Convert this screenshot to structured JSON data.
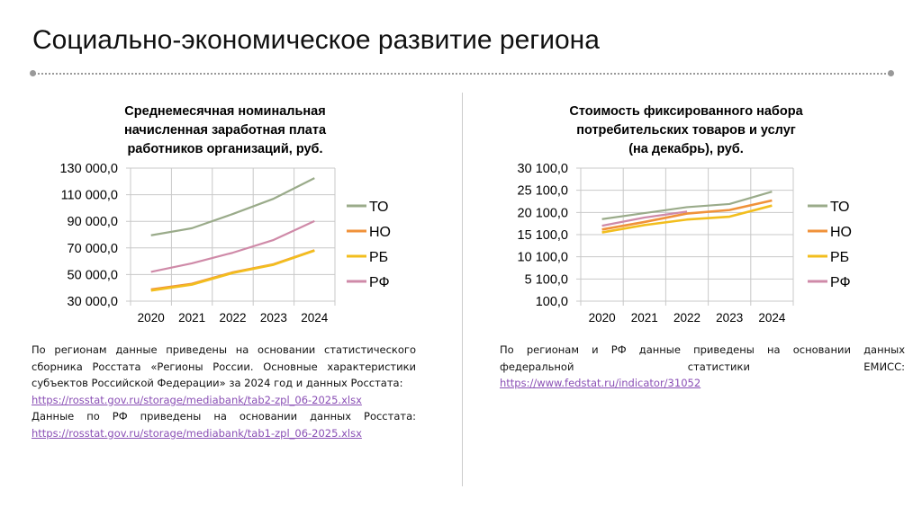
{
  "slide": {
    "title": "Социально-экономическое развитие региона"
  },
  "chart_data": [
    {
      "type": "line",
      "title_lines": [
        "Среднемесячная номинальная",
        "начисленная заработная плата",
        "работников организаций, руб."
      ],
      "categories": [
        "2020",
        "2021",
        "2022",
        "2023",
        "2024"
      ],
      "ylim": [
        30000,
        130000
      ],
      "yticks": [
        "30 000,0",
        "50 000,0",
        "70 000,0",
        "90 000,0",
        "110 000,0",
        "130 000,0"
      ],
      "ytick_values": [
        30000,
        50000,
        70000,
        90000,
        110000,
        130000
      ],
      "grid": true,
      "legend_placement": "right",
      "series": [
        {
          "name": "ТО",
          "color": "#9aab8a",
          "values": [
            79500,
            84800,
            95500,
            107000,
            122500
          ]
        },
        {
          "name": "НО",
          "color": "#f0923a",
          "values": [
            38800,
            43000,
            51600,
            57700,
            68200
          ]
        },
        {
          "name": "РБ",
          "color": "#f2be1e",
          "values": [
            38000,
            42400,
            51200,
            57400,
            68000
          ]
        },
        {
          "name": "РФ",
          "color": "#cf8aa8",
          "values": [
            52000,
            58400,
            66400,
            76000,
            90200
          ]
        }
      ]
    },
    {
      "type": "line",
      "title_lines": [
        "Стоимость фиксированного набора",
        "потребительских товаров и услуг",
        "(на декабрь), руб."
      ],
      "categories": [
        "2020",
        "2021",
        "2022",
        "2023",
        "2024"
      ],
      "ylim": [
        100,
        30100
      ],
      "yticks": [
        "100,0",
        "5 100,0",
        "10 100,0",
        "15 100,0",
        "20 100,0",
        "25 100,0",
        "30 100,0"
      ],
      "ytick_values": [
        100,
        5100,
        10100,
        15100,
        20100,
        25100,
        30100
      ],
      "grid": true,
      "legend_placement": "right",
      "series": [
        {
          "name": "ТО",
          "color": "#9aab8a",
          "values": [
            18600,
            19950,
            21300,
            22000,
            24800
          ]
        },
        {
          "name": "НО",
          "color": "#f0923a",
          "values": [
            16250,
            17950,
            19850,
            20650,
            22800
          ]
        },
        {
          "name": "РБ",
          "color": "#f2be1e",
          "values": [
            15600,
            17250,
            18500,
            19150,
            21650
          ]
        },
        {
          "name": "РФ",
          "color": "#cf8aa8",
          "values": [
            17100,
            18950,
            20300,
            null,
            null
          ]
        }
      ]
    }
  ],
  "notes": {
    "left": {
      "text1": "По регионам данные приведены на основании статистического сборника Росстата «Регионы России. Основные характеристики субъектов Российской Федерации» за 2024 год и данных Росстата:",
      "link1": "https://rosstat.gov.ru/storage/mediabank/tab2-zpl_06-2025.xlsx",
      "text2": "Данные по РФ приведены на основании данных Росстата:",
      "link2": "https://rosstat.gov.ru/storage/mediabank/tab1-zpl_06-2025.xlsx"
    },
    "right": {
      "text1": "По регионам и РФ данные приведены на основании данных федеральной статистики ЕМИСС:",
      "link1": "https://www.fedstat.ru/indicator/31052"
    }
  }
}
